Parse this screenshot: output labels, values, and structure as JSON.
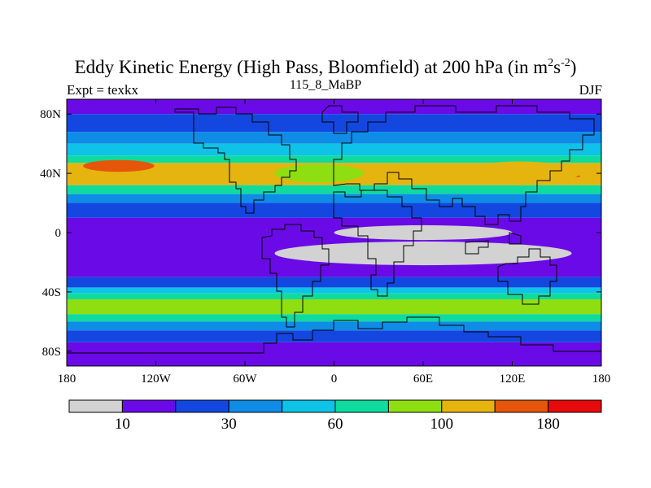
{
  "title": {
    "main_prefix": "Eddy Kinetic Energy (High Pass, Bloomfield) at 200 hPa (in m",
    "sup1": "2",
    "middle": "s",
    "sup2": "-2",
    "suffix": ")"
  },
  "subtitle": "115_8_MaBP",
  "left_label": "Expt = texkx",
  "right_label": "DJF",
  "axes": {
    "x_ticks": [
      "180",
      "120W",
      "60W",
      "0",
      "60E",
      "120E",
      "180"
    ],
    "x_values": [
      -180,
      -120,
      -60,
      0,
      60,
      120,
      180
    ],
    "y_ticks": [
      "80N",
      "40N",
      "0",
      "40S",
      "80S"
    ],
    "y_values": [
      80,
      40,
      0,
      -40,
      -80
    ],
    "lon_range": [
      -180,
      180
    ],
    "lat_range": [
      -90,
      90
    ]
  },
  "colorbar": {
    "colors": [
      "#d2d2d2",
      "#6a0ae6",
      "#1447e0",
      "#0e8ce6",
      "#0ec2e8",
      "#10db9e",
      "#8fde12",
      "#e6b40e",
      "#e6560a",
      "#e60a0a"
    ],
    "labels": [
      "10",
      "30",
      "60",
      "100",
      "180"
    ],
    "label_positions": [
      1,
      3,
      5,
      7,
      9
    ]
  },
  "field_bands": [
    {
      "lat_from": 90,
      "lat_to": 80,
      "level": 1
    },
    {
      "lat_from": 80,
      "lat_to": 68,
      "level": 2
    },
    {
      "lat_from": 68,
      "lat_to": 60,
      "level": 3
    },
    {
      "lat_from": 60,
      "lat_to": 52,
      "level": 4
    },
    {
      "lat_from": 52,
      "lat_to": 47,
      "level": 5
    },
    {
      "lat_from": 47,
      "lat_to": 32,
      "level": 7
    },
    {
      "lat_from": 32,
      "lat_to": 26,
      "level": 5
    },
    {
      "lat_from": 26,
      "lat_to": 20,
      "level": 3
    },
    {
      "lat_from": 20,
      "lat_to": 10,
      "level": 2
    },
    {
      "lat_from": 10,
      "lat_to": -30,
      "level": 1
    },
    {
      "lat_from": -30,
      "lat_to": -37,
      "level": 2
    },
    {
      "lat_from": -37,
      "lat_to": -41,
      "level": 4
    },
    {
      "lat_from": -41,
      "lat_to": -45,
      "level": 5
    },
    {
      "lat_from": -45,
      "lat_to": -55,
      "level": 6
    },
    {
      "lat_from": -55,
      "lat_to": -60,
      "level": 5
    },
    {
      "lat_from": -60,
      "lat_to": -66,
      "level": 3
    },
    {
      "lat_from": -66,
      "lat_to": -74,
      "level": 2
    },
    {
      "lat_from": -74,
      "lat_to": -90,
      "level": 1
    }
  ],
  "field_blobs": [
    {
      "lon": -145,
      "lat": 45,
      "rlon": 24,
      "rlat": 4,
      "level": 8
    },
    {
      "lon": 152,
      "lat": 38,
      "rlon": 14,
      "rlat": 1.3,
      "level": 8
    },
    {
      "lon": 60,
      "lat": -14,
      "rlon": 100,
      "rlat": 8,
      "level": 0
    },
    {
      "lon": 60,
      "lat": 0,
      "rlon": 60,
      "rlat": 5,
      "level": 0
    },
    {
      "lon": 125,
      "lat": 40,
      "rlon": 40,
      "rlat": 8,
      "level": 7
    },
    {
      "lon": -10,
      "lat": 40,
      "rlon": 30,
      "rlat": 6,
      "level": 6
    }
  ]
}
